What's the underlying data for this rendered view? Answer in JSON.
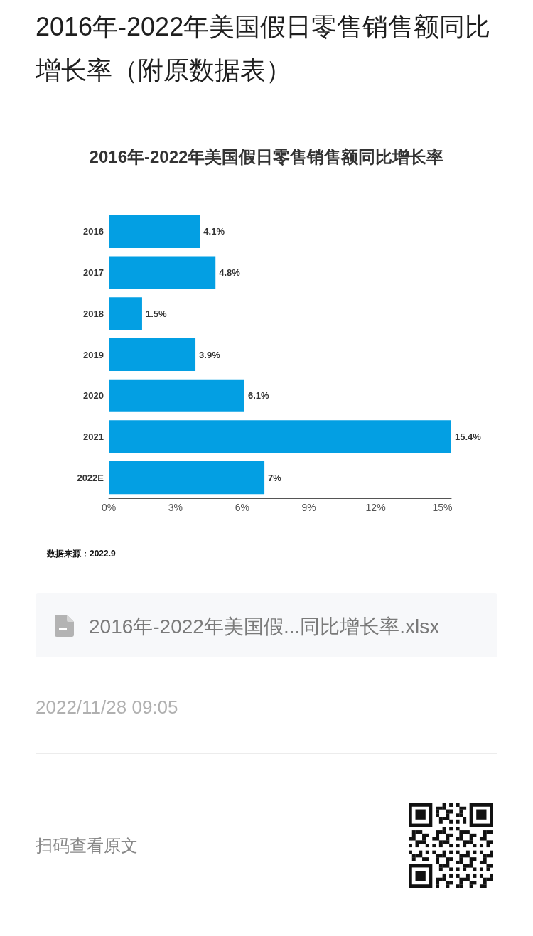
{
  "chart_data": {
    "type": "bar",
    "orientation": "horizontal",
    "title": "2016年-2022年美国假日零售销售额同比增长率（附原数据表）",
    "subtitle": "2016年-2022年美国假日零售销售额同比增长率",
    "categories": [
      "2016",
      "2017",
      "2018",
      "2019",
      "2020",
      "2021",
      "2022E"
    ],
    "values": [
      4.1,
      4.8,
      1.5,
      3.9,
      6.1,
      15.4,
      7
    ],
    "value_labels": [
      "4.1%",
      "4.8%",
      "1.5%",
      "3.9%",
      "6.1%",
      "15.4%",
      "7%"
    ],
    "color": "#039fe3",
    "xlim": [
      0,
      15.4
    ],
    "xticks": [
      {
        "value": 0,
        "label": "0%"
      },
      {
        "value": 3,
        "label": "3%"
      },
      {
        "value": 6,
        "label": "6%"
      },
      {
        "value": 9,
        "label": "9%"
      },
      {
        "value": 12,
        "label": "12%"
      },
      {
        "value": 15,
        "label": "15%"
      }
    ],
    "annotations": [
      "数据来源：2022.9",
      "2016年-2022年美国假...同比增长率.xlsx",
      "2022/11/28 09:05",
      "扫码查看原文"
    ]
  }
}
